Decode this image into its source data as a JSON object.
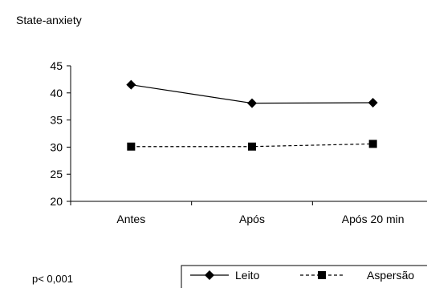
{
  "chart_data": {
    "type": "line",
    "title": "State-anxiety",
    "xlabel": "",
    "ylabel": "",
    "categories": [
      "Antes",
      "Após",
      "Após 20 min"
    ],
    "ylim": [
      20,
      45
    ],
    "yticks": [
      20,
      25,
      30,
      35,
      40,
      45
    ],
    "grid": false,
    "legend_position": "bottom-right",
    "series": [
      {
        "name": "Leito",
        "values": [
          41.5,
          38.1,
          38.2
        ],
        "line_style": "solid",
        "marker": "diamond",
        "color": "#000000"
      },
      {
        "name": "Aspersão",
        "values": [
          30.1,
          30.1,
          30.6
        ],
        "line_style": "dashed",
        "marker": "square",
        "color": "#000000"
      }
    ],
    "annotations": [
      "p< 0,001"
    ]
  }
}
